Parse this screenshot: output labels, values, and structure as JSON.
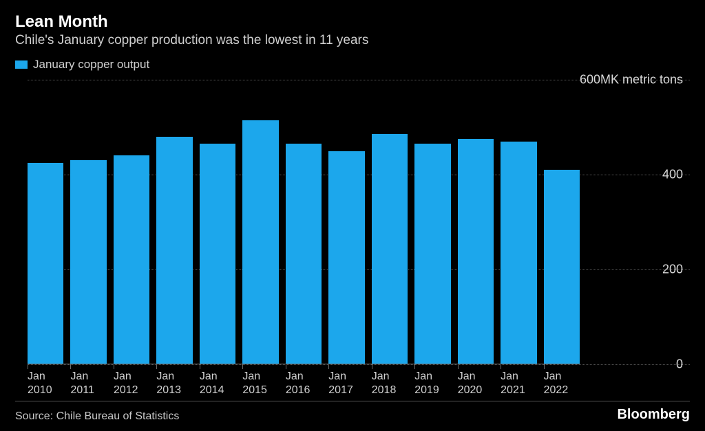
{
  "header": {
    "title": "Lean Month",
    "subtitle": "Chile's January copper production was the lowest in 11 years"
  },
  "legend": {
    "label": "January copper output",
    "swatch_color": "#1ca7ec"
  },
  "chart": {
    "type": "bar",
    "bar_color": "#1ca7ec",
    "background_color": "#000000",
    "grid_color": "#555555",
    "text_color": "#d0d0d0",
    "ylim": [
      0,
      600
    ],
    "y_ticks": [
      {
        "value": 600,
        "label": "600MK metric tons"
      },
      {
        "value": 400,
        "label": "400"
      },
      {
        "value": 200,
        "label": "200"
      },
      {
        "value": 0,
        "label": "0"
      }
    ],
    "categories": [
      "Jan\n2010",
      "Jan\n2011",
      "Jan\n2012",
      "Jan\n2013",
      "Jan\n2014",
      "Jan\n2015",
      "Jan\n2016",
      "Jan\n2017",
      "Jan\n2018",
      "Jan\n2019",
      "Jan\n2020",
      "Jan\n2021",
      "Jan\n2022"
    ],
    "values": [
      425,
      430,
      440,
      480,
      465,
      515,
      465,
      450,
      485,
      465,
      475,
      470,
      410
    ]
  },
  "footer": {
    "source": "Source: Chile Bureau of Statistics",
    "brand": "Bloomberg"
  }
}
